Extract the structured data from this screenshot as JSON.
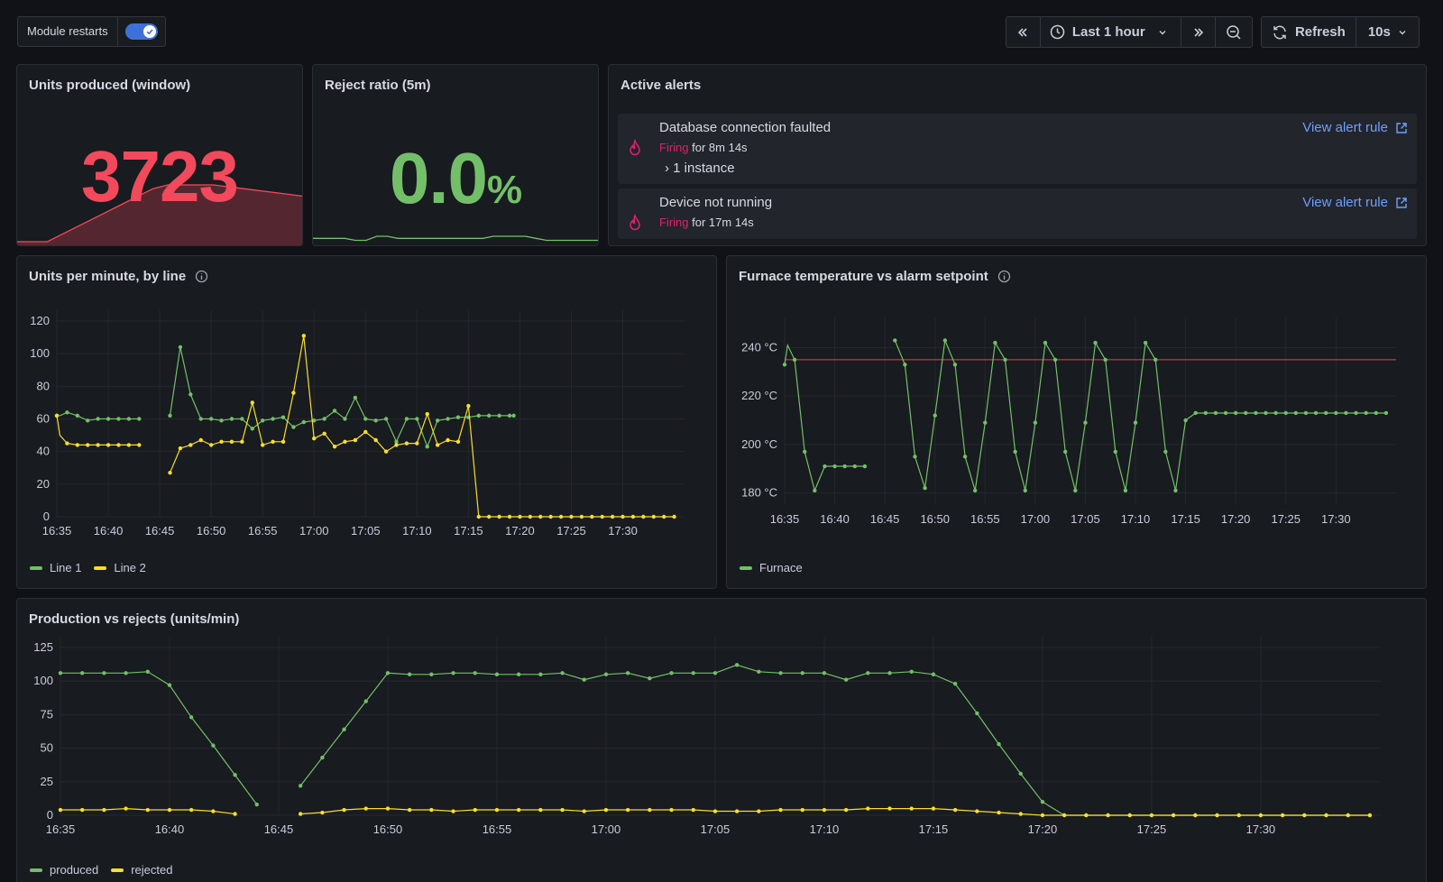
{
  "toolbar": {
    "module_restarts_label": "Module restarts",
    "module_restarts_on": true,
    "time_range": "Last 1 hour",
    "refresh_label": "Refresh",
    "refresh_interval": "10s"
  },
  "stat_units": {
    "title": "Units produced (window)",
    "value": "3723",
    "color": "#f2495c",
    "spark": [
      0,
      0,
      0,
      2,
      4,
      6,
      8,
      10,
      12,
      14,
      15,
      15,
      15,
      15,
      14.5,
      14,
      13.5,
      13,
      12.5,
      12
    ]
  },
  "stat_reject": {
    "title": "Reject ratio (5m)",
    "value": "0.0",
    "unit": "%",
    "color": "#73bf69",
    "spark": [
      3,
      3,
      3,
      3,
      2,
      2,
      4,
      4,
      3,
      3,
      3,
      3,
      3,
      3,
      3,
      3,
      3,
      4,
      4,
      4,
      4,
      3,
      2,
      2,
      2,
      2,
      2,
      2
    ]
  },
  "alerts": {
    "title": "Active alerts",
    "items": [
      {
        "name": "Database connection faulted",
        "state": "Firing",
        "duration": "for 8m 14s",
        "instances": "1 instance",
        "link": "View alert rule"
      },
      {
        "name": "Device not running",
        "state": "Firing",
        "duration": "for 17m 14s",
        "link": "View alert rule"
      }
    ]
  },
  "colors": {
    "green": "#73bf69",
    "yellow": "#fade2a",
    "red": "#f2495c",
    "alarm_line": "#e0464c"
  },
  "chart_data": [
    {
      "id": "units_per_minute",
      "type": "line",
      "title": "Units per minute, by line",
      "ylim": [
        0,
        120
      ],
      "yticks": [
        0,
        20,
        40,
        60,
        80,
        100,
        120
      ],
      "x_range_min": [
        0,
        61
      ],
      "xticks": [
        "16:35",
        "16:40",
        "16:45",
        "16:50",
        "16:55",
        "17:00",
        "17:05",
        "17:10",
        "17:15",
        "17:20",
        "17:25",
        "17:30"
      ],
      "legend": "bottom-left",
      "series": [
        {
          "name": "Line 1",
          "color": "#73bf69",
          "x": [
            0,
            0.3,
            1,
            2,
            3,
            4,
            5,
            6,
            7,
            8,
            11,
            12,
            13,
            14,
            15,
            16,
            17,
            18,
            19,
            20,
            21,
            22,
            23,
            24,
            25,
            26,
            27,
            28,
            29,
            30,
            31,
            32,
            33,
            34,
            35,
            36,
            37,
            38,
            39,
            40,
            41,
            42,
            43,
            44,
            44.4
          ],
          "y": [
            62,
            62,
            64,
            62,
            59,
            60,
            60,
            60,
            60,
            60,
            62,
            104,
            75,
            60,
            60,
            59,
            60,
            60,
            54,
            59,
            60,
            61,
            55,
            58,
            59,
            60,
            65,
            60,
            73,
            60,
            59,
            60,
            46,
            60,
            60,
            43,
            59,
            60,
            61,
            61,
            62,
            62,
            62,
            62,
            62
          ]
        },
        {
          "name": "Line 2",
          "color": "#fade2a",
          "x": [
            0,
            0.3,
            1,
            2,
            3,
            4,
            5,
            6,
            7,
            8,
            11,
            12,
            13,
            14,
            15,
            16,
            17,
            18,
            19,
            20,
            21,
            22,
            23,
            24,
            25,
            26,
            27,
            28,
            29,
            30,
            31,
            32,
            33,
            34,
            35,
            36,
            37,
            38,
            39,
            40,
            41,
            41.5,
            42,
            43,
            44,
            45,
            46,
            47,
            48,
            49,
            50,
            51,
            52,
            53,
            54,
            55,
            56,
            57,
            58,
            59,
            60
          ],
          "y": [
            62,
            50,
            45,
            44,
            44,
            44,
            44,
            44,
            44,
            44,
            27,
            42,
            44,
            47,
            44,
            46,
            46,
            46,
            70,
            44,
            46,
            46,
            76,
            111,
            48,
            51,
            43,
            46,
            47,
            52,
            47,
            40,
            44,
            45,
            45,
            63,
            44,
            47,
            46,
            68,
            0,
            0,
            0,
            0,
            0,
            0,
            0,
            0,
            0,
            0,
            0,
            0,
            0,
            0,
            0,
            0,
            0,
            0,
            0,
            0,
            0
          ]
        }
      ]
    },
    {
      "id": "furnace_temperature",
      "type": "line",
      "title": "Furnace temperature vs alarm setpoint",
      "ylim": [
        175,
        248
      ],
      "yticks": [
        180,
        200,
        220,
        240
      ],
      "ytick_unit": "°C",
      "alarm_setpoint": 235,
      "x_range_min": [
        0,
        61
      ],
      "xticks": [
        "16:35",
        "16:40",
        "16:45",
        "16:50",
        "16:55",
        "17:00",
        "17:05",
        "17:10",
        "17:15",
        "17:20",
        "17:25",
        "17:30"
      ],
      "legend": "bottom-left",
      "series": [
        {
          "name": "Furnace",
          "color": "#73bf69",
          "x": [
            0,
            0.3,
            1,
            2,
            3,
            4,
            5,
            6,
            7,
            8,
            11,
            12,
            13,
            14,
            15,
            16,
            17,
            18,
            19,
            20,
            21,
            22,
            23,
            24,
            25,
            26,
            27,
            28,
            29,
            30,
            31,
            32,
            33,
            34,
            35,
            36,
            37,
            38,
            39,
            40,
            41,
            42,
            43,
            44,
            45,
            46,
            47,
            48,
            49,
            50,
            51,
            52,
            53,
            54,
            55,
            56,
            57,
            58,
            59,
            60
          ],
          "y": [
            233,
            241,
            235,
            197,
            181,
            191,
            191,
            191,
            191,
            191,
            243,
            233,
            195,
            182,
            212,
            243,
            233,
            195,
            181,
            209,
            242,
            235,
            197,
            181,
            209,
            242,
            235,
            197,
            181,
            209,
            242,
            235,
            197,
            181,
            209,
            242,
            235,
            197,
            181,
            210,
            213,
            213,
            213,
            213,
            213,
            213,
            213,
            213,
            213,
            213,
            213,
            213,
            213,
            213,
            213,
            213,
            213,
            213,
            213,
            213
          ]
        }
      ]
    },
    {
      "id": "production_vs_rejects",
      "type": "line",
      "title": "Production vs rejects (units/min)",
      "ylim": [
        0,
        125
      ],
      "yticks": [
        0,
        25,
        50,
        75,
        100,
        125
      ],
      "x_range_min": [
        0,
        60.5
      ],
      "xticks": [
        "16:35",
        "16:40",
        "16:45",
        "16:50",
        "16:55",
        "17:00",
        "17:05",
        "17:10",
        "17:15",
        "17:20",
        "17:25",
        "17:30"
      ],
      "legend": "bottom-left",
      "series": [
        {
          "name": "produced",
          "color": "#73bf69",
          "x": [
            0,
            1,
            2,
            3,
            4,
            5,
            6,
            7,
            8,
            9,
            11,
            12,
            13,
            14,
            15,
            16,
            17,
            18,
            19,
            20,
            21,
            22,
            23,
            24,
            25,
            26,
            27,
            28,
            29,
            30,
            31,
            32,
            33,
            34,
            35,
            36,
            37,
            38,
            39,
            40,
            41,
            42,
            43,
            44,
            45,
            46,
            47,
            48,
            49,
            50,
            51,
            52,
            53,
            54,
            55,
            56,
            57,
            58,
            59,
            60
          ],
          "y": [
            106,
            106,
            106,
            106,
            107,
            97,
            73,
            52,
            30,
            8,
            22,
            43,
            64,
            85,
            106,
            105,
            105,
            106,
            106,
            105,
            105,
            105,
            106,
            101,
            105,
            106,
            102,
            106,
            106,
            106,
            112,
            107,
            106,
            106,
            106,
            101,
            106,
            106,
            107,
            105,
            98,
            76,
            53,
            31,
            10,
            0,
            0,
            0,
            0,
            0,
            0,
            0,
            0,
            0,
            0,
            0,
            0,
            0,
            0,
            0
          ]
        },
        {
          "name": "rejected",
          "color": "#fade2a",
          "x": [
            0,
            1,
            2,
            3,
            4,
            5,
            6,
            7,
            8,
            11,
            12,
            13,
            14,
            15,
            16,
            17,
            18,
            19,
            20,
            21,
            22,
            23,
            24,
            25,
            26,
            27,
            28,
            29,
            30,
            31,
            32,
            33,
            34,
            35,
            36,
            37,
            38,
            39,
            40,
            41,
            42,
            43,
            44,
            45,
            46,
            47,
            48,
            49,
            50,
            51,
            52,
            53,
            54,
            55,
            56,
            57,
            58,
            59,
            60
          ],
          "y": [
            4,
            4,
            4,
            5,
            4,
            4,
            4,
            3,
            1,
            1,
            2,
            4,
            5,
            5,
            4,
            4,
            3,
            4,
            4,
            4,
            4,
            4,
            3,
            4,
            4,
            4,
            4,
            4,
            3,
            3,
            3,
            4,
            4,
            4,
            4,
            5,
            5,
            5,
            5,
            4,
            3,
            2,
            1,
            0,
            0,
            0,
            0,
            0,
            0,
            0,
            0,
            0,
            0,
            0,
            0,
            0,
            0,
            0,
            0
          ]
        }
      ]
    }
  ]
}
